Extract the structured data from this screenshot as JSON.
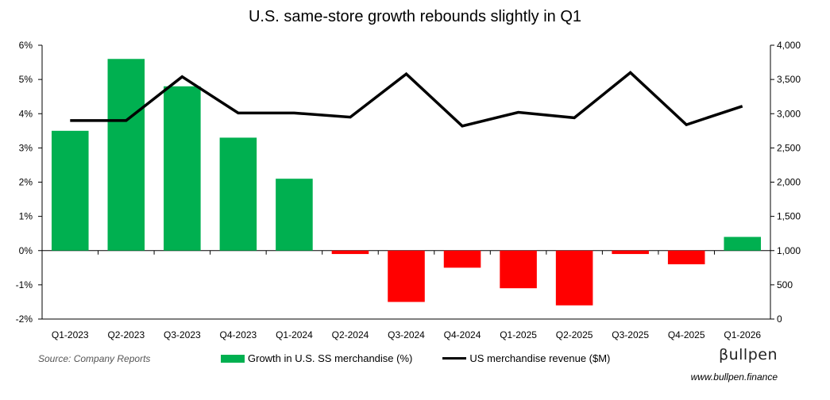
{
  "chart_data": {
    "type": "bar+line",
    "title": "U.S. same-store growth rebounds slightly in Q1",
    "categories": [
      "Q1-2023",
      "Q2-2023",
      "Q3-2023",
      "Q4-2023",
      "Q1-2024",
      "Q2-2024",
      "Q3-2024",
      "Q4-2024",
      "Q1-2025",
      "Q2-2025",
      "Q3-2025",
      "Q4-2025",
      "Q1-2026"
    ],
    "series": [
      {
        "name": "Growth in U.S. SS merchandise (%)",
        "type": "bar",
        "axis": "left",
        "values": [
          3.5,
          5.6,
          4.8,
          3.3,
          2.1,
          -0.1,
          -1.5,
          -0.5,
          -1.1,
          -1.6,
          -0.1,
          -0.4,
          0.4
        ],
        "positive_color": "#00b050",
        "negative_color": "#ff0000"
      },
      {
        "name": "US merchandise revenue ($M)",
        "type": "line",
        "axis": "right",
        "values": [
          2900,
          2900,
          3540,
          3010,
          3010,
          2950,
          3580,
          2820,
          3020,
          2940,
          3600,
          2840,
          3110
        ],
        "color": "#000000"
      }
    ],
    "y_left": {
      "min": -2,
      "max": 6,
      "ticks": [
        "-2%",
        "-1%",
        "0%",
        "1%",
        "2%",
        "3%",
        "4%",
        "5%",
        "6%"
      ]
    },
    "y_right": {
      "min": 0,
      "max": 4000,
      "ticks": [
        "0",
        "500",
        "1,000",
        "1,500",
        "2,000",
        "2,500",
        "3,000",
        "3,500",
        "4,000"
      ]
    },
    "legend_position": "bottom"
  },
  "source": "Source: Company Reports",
  "brand": "βullpen",
  "website": "www.bullpen.finance"
}
